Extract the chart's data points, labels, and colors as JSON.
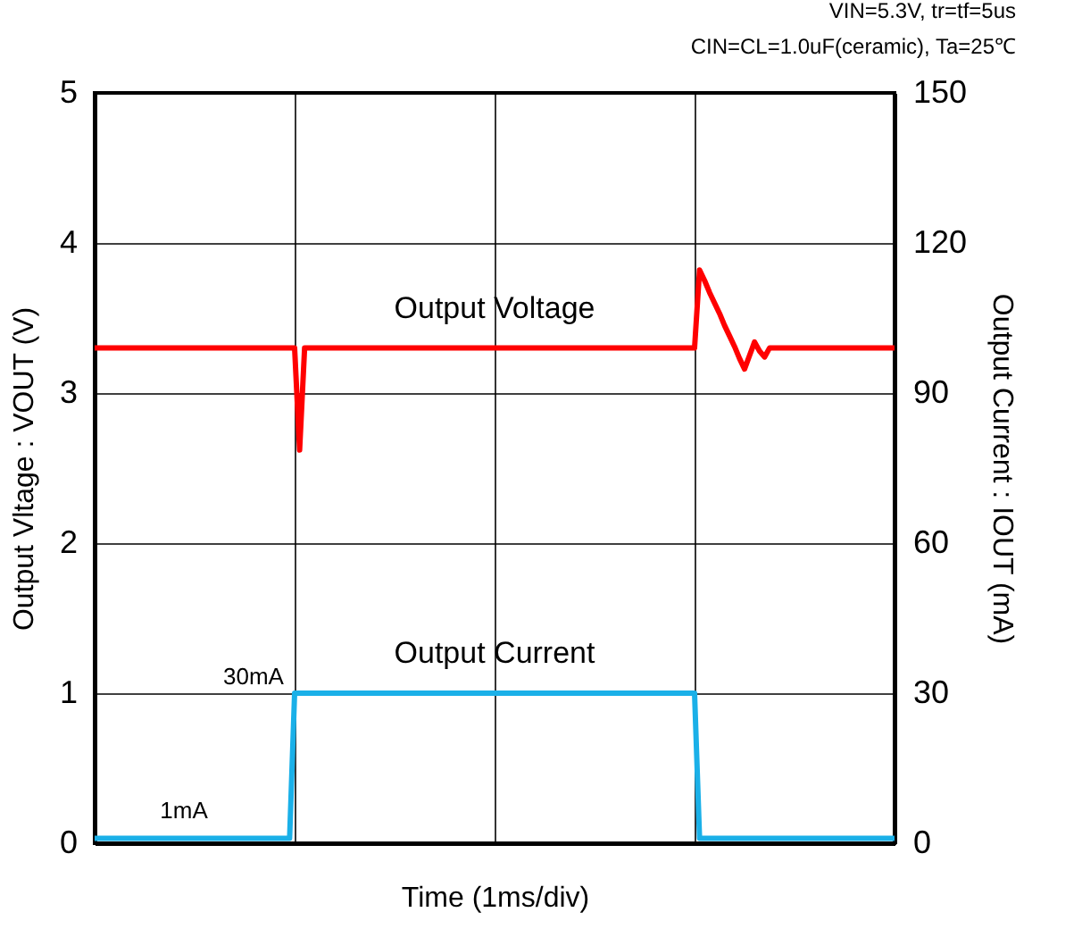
{
  "chart_data": {
    "type": "line",
    "xlabel": "Time (1ms/div)",
    "ylabel": "Output Vltage : VOUT (V)",
    "y2label": "Output Current : IOUT (mA)",
    "annotations": [
      "VIN=5.3V, tr=tf=5us",
      "CIN=CL=1.0uF(ceramic), Ta=25℃",
      "1mA",
      "30mA"
    ],
    "categories": [
      null,
      null,
      null,
      null,
      null,
      null,
      null,
      null,
      null,
      null,
      null,
      null,
      null,
      null,
      null,
      null,
      null,
      null,
      null,
      null,
      null,
      null,
      null,
      null,
      null,
      null,
      null,
      null,
      null,
      null,
      null,
      null,
      null,
      null,
      null,
      null,
      null,
      null,
      null,
      null,
      null,
      null,
      null,
      null,
      null,
      null,
      null,
      null,
      null,
      null,
      null,
      null,
      null,
      null,
      null,
      null,
      null,
      null,
      null,
      null,
      null,
      null,
      null,
      null,
      null,
      null,
      null,
      null,
      null,
      null,
      null,
      null,
      null,
      null,
      null,
      null,
      null,
      null,
      null,
      null,
      null,
      null,
      null,
      null,
      null,
      null,
      null,
      null,
      null,
      null,
      null,
      null,
      null,
      null,
      null,
      null,
      null,
      null,
      null,
      null,
      null,
      null,
      null,
      null,
      null,
      null,
      null,
      null,
      null,
      null,
      null,
      null,
      null,
      null,
      null,
      null,
      null,
      null,
      null,
      null,
      null,
      null,
      null,
      null,
      null,
      null,
      null,
      null,
      null,
      null,
      null,
      null,
      null,
      null,
      null,
      null,
      null,
      null,
      null,
      null,
      null,
      null,
      null,
      null,
      null,
      null,
      null,
      null,
      null,
      null,
      null,
      null,
      null,
      null,
      null,
      null,
      null,
      null,
      null,
      null,
      null
    ],
    "ylim": [
      0,
      5
    ],
    "yticks": [
      0,
      1,
      2,
      3,
      4,
      5
    ],
    "y2lim": [
      0,
      150
    ],
    "y2ticks": [
      0,
      30,
      60,
      90,
      120,
      150
    ],
    "grid": true,
    "series": [
      {
        "name": "Output Voltage",
        "color": "#ff0000",
        "values": [
          3.3,
          3.3,
          3.3,
          3.3,
          3.3,
          3.3,
          3.3,
          3.3,
          3.3,
          3.3,
          3.3,
          3.3,
          3.3,
          3.3,
          3.3,
          3.3,
          3.3,
          3.3,
          3.3,
          3.3,
          3.3,
          3.3,
          3.3,
          3.3,
          3.3,
          3.3,
          3.3,
          3.3,
          3.3,
          3.3,
          3.3,
          3.3,
          3.3,
          3.3,
          3.3,
          3.3,
          3.3,
          3.3,
          3.3,
          3.3,
          3.3,
          2.62,
          3.3,
          3.3,
          3.3,
          3.3,
          3.3,
          3.3,
          3.3,
          3.3,
          3.3,
          3.3,
          3.3,
          3.3,
          3.3,
          3.3,
          3.3,
          3.3,
          3.3,
          3.3,
          3.3,
          3.3,
          3.3,
          3.3,
          3.3,
          3.3,
          3.3,
          3.3,
          3.3,
          3.3,
          3.3,
          3.3,
          3.3,
          3.3,
          3.3,
          3.3,
          3.3,
          3.3,
          3.3,
          3.3,
          3.3,
          3.3,
          3.3,
          3.3,
          3.3,
          3.3,
          3.3,
          3.3,
          3.3,
          3.3,
          3.3,
          3.3,
          3.3,
          3.3,
          3.3,
          3.3,
          3.3,
          3.3,
          3.3,
          3.3,
          3.3,
          3.3,
          3.3,
          3.3,
          3.3,
          3.3,
          3.3,
          3.3,
          3.3,
          3.3,
          3.3,
          3.3,
          3.3,
          3.3,
          3.3,
          3.3,
          3.3,
          3.3,
          3.3,
          3.3,
          3.3,
          3.82,
          3.75,
          3.67,
          3.6,
          3.53,
          3.45,
          3.38,
          3.31,
          3.23,
          3.16,
          3.25,
          3.34,
          3.28,
          3.24,
          3.3,
          3.3,
          3.3,
          3.3,
          3.3,
          3.3,
          3.3,
          3.3,
          3.3,
          3.3,
          3.3,
          3.3,
          3.3,
          3.3,
          3.3,
          3.3,
          3.3,
          3.3,
          3.3,
          3.3,
          3.3,
          3.3,
          3.3,
          3.3,
          3.3,
          3.3
        ]
      },
      {
        "name": "Output Current",
        "color": "#1ab0e8",
        "axis": "y2",
        "values": [
          1,
          1,
          1,
          1,
          1,
          1,
          1,
          1,
          1,
          1,
          1,
          1,
          1,
          1,
          1,
          1,
          1,
          1,
          1,
          1,
          1,
          1,
          1,
          1,
          1,
          1,
          1,
          1,
          1,
          1,
          1,
          1,
          1,
          1,
          1,
          1,
          1,
          1,
          1,
          1,
          30,
          30,
          30,
          30,
          30,
          30,
          30,
          30,
          30,
          30,
          30,
          30,
          30,
          30,
          30,
          30,
          30,
          30,
          30,
          30,
          30,
          30,
          30,
          30,
          30,
          30,
          30,
          30,
          30,
          30,
          30,
          30,
          30,
          30,
          30,
          30,
          30,
          30,
          30,
          30,
          30,
          30,
          30,
          30,
          30,
          30,
          30,
          30,
          30,
          30,
          30,
          30,
          30,
          30,
          30,
          30,
          30,
          30,
          30,
          30,
          30,
          30,
          30,
          30,
          30,
          30,
          30,
          30,
          30,
          30,
          30,
          30,
          30,
          30,
          30,
          30,
          30,
          30,
          30,
          30,
          30,
          1,
          1,
          1,
          1,
          1,
          1,
          1,
          1,
          1,
          1,
          1,
          1,
          1,
          1,
          1,
          1,
          1,
          1,
          1,
          1,
          1,
          1,
          1,
          1,
          1,
          1,
          1,
          1,
          1,
          1,
          1,
          1,
          1,
          1,
          1,
          1,
          1,
          1,
          1,
          1
        ]
      }
    ]
  }
}
